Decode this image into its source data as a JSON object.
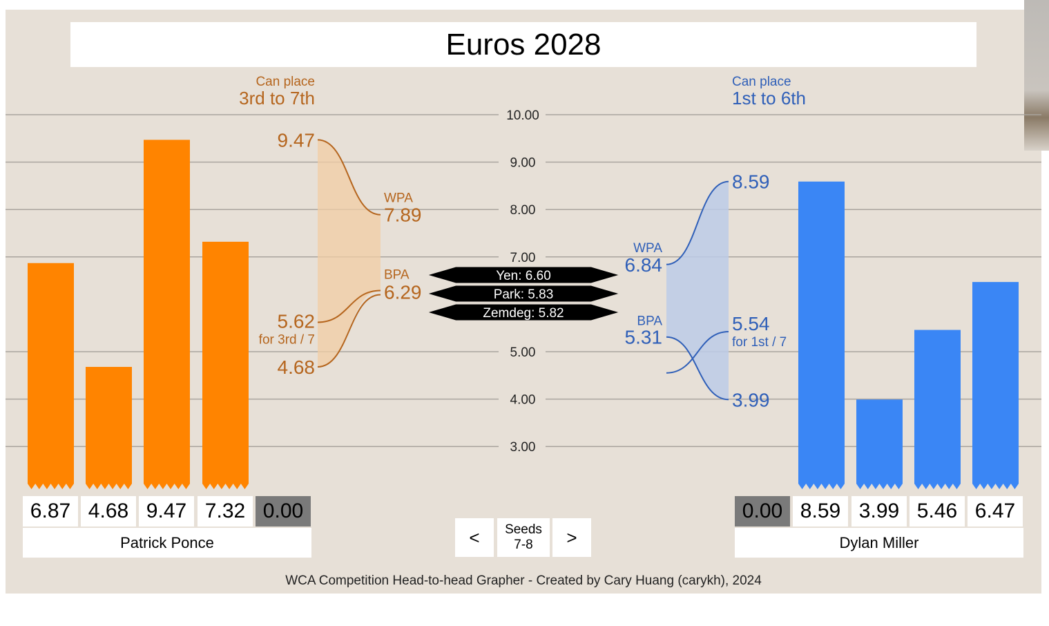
{
  "title": "Euros 2028",
  "footer": "WCA Competition Head-to-head Grapher - Created by Cary Huang (carykh), 2024",
  "colors": {
    "left": "#ff8400",
    "left_text": "#b5651d",
    "left_band": "#f2cda4",
    "right": "#3a86f5",
    "right_text": "#2f5fb8",
    "right_band": "#bccbe7",
    "background": "#e7e0d7",
    "grid": "#a9a49e"
  },
  "nav": {
    "prev_label": "<",
    "next_label": ">",
    "seeds_label": "Seeds",
    "seeds_value": "7-8"
  },
  "left_player": {
    "name": "Patrick Ponce",
    "scores": [
      "6.87",
      "4.68",
      "9.47",
      "7.32",
      "0.00"
    ],
    "can_place_label": "Can place",
    "can_place_range": "3rd to 7th"
  },
  "right_player": {
    "name": "Dylan Miller",
    "scores": [
      "0.00",
      "8.59",
      "3.99",
      "5.46",
      "6.47"
    ],
    "can_place_label": "Can place",
    "can_place_range": "1st to 6th"
  },
  "chart_data": {
    "type": "bar",
    "ylim": [
      1.5,
      10.0
    ],
    "y_ticks": [
      "10.00",
      "9.00",
      "8.00",
      "7.00",
      "5.00",
      "4.00",
      "3.00"
    ],
    "series": [
      {
        "name": "Patrick Ponce",
        "values": [
          6.87,
          4.68,
          9.47,
          7.32
        ]
      },
      {
        "name": "Dylan Miller",
        "values": [
          8.59,
          3.99,
          5.46,
          6.47
        ]
      }
    ],
    "left_projection": {
      "wpa_label": "WPA",
      "wpa_value": 7.89,
      "wpa_text": "7.89",
      "bpa_label": "BPA",
      "bpa_value": 6.29,
      "bpa_text": "6.29",
      "max_value": 9.47,
      "max_text": "9.47",
      "min_value": 4.68,
      "min_text": "4.68",
      "threshold_value": 5.62,
      "threshold_text": "5.62",
      "threshold_note": "for 3rd / 7"
    },
    "right_projection": {
      "wpa_label": "WPA",
      "wpa_value": 6.84,
      "wpa_text": "6.84",
      "bpa_label": "BPA",
      "bpa_value": 5.31,
      "bpa_text": "5.31",
      "max_value": 8.59,
      "max_text": "8.59",
      "min_value": 3.99,
      "min_text": "3.99",
      "threshold_value": 5.54,
      "threshold_text": "5.54",
      "threshold_note": "for 1st / 7"
    },
    "competitors": [
      {
        "label": "Yen: 6.60",
        "value": 6.6
      },
      {
        "label": "Park: 5.83",
        "value": 5.83
      },
      {
        "label": "Zemdeg: 5.82",
        "value": 5.82
      }
    ]
  }
}
